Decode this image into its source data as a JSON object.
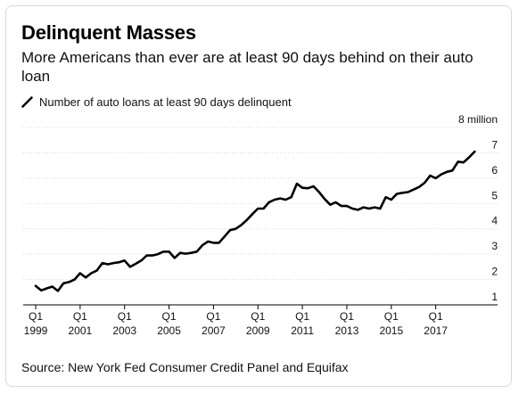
{
  "header": {
    "title": "Delinquent Masses",
    "subtitle": "More Americans than ever are at least 90 days behind on their auto loan"
  },
  "legend": {
    "label": "Number of auto loans at least 90 days delinquent",
    "icon": "diagonal-line-icon"
  },
  "footer": {
    "source": "Source: New York Fed Consumer Credit Panel and Equifax"
  },
  "colors": {
    "line": "#000000",
    "grid": "#d9d9d9",
    "text": "#111111"
  },
  "chart_data": {
    "type": "line",
    "title": "Delinquent Masses",
    "subtitle": "More Americans than ever are at least 90 days behind on their auto loan",
    "xlabel": "",
    "ylabel": "",
    "ylim": [
      1,
      8
    ],
    "y_ticks": [
      1,
      2,
      3,
      4,
      5,
      6,
      7,
      8
    ],
    "y_tick_labels": [
      "1",
      "2",
      "3",
      "4",
      "5",
      "6",
      "7",
      "8 million"
    ],
    "y_axis_side": "right",
    "grid": true,
    "x_ticks": [
      {
        "t": 1999,
        "q": "Q1",
        "year": "1999"
      },
      {
        "t": 2001,
        "q": "Q1",
        "year": "2001"
      },
      {
        "t": 2003,
        "q": "Q1",
        "year": "2003"
      },
      {
        "t": 2005,
        "q": "Q1",
        "year": "2005"
      },
      {
        "t": 2007,
        "q": "Q1",
        "year": "2007"
      },
      {
        "t": 2009,
        "q": "Q1",
        "year": "2009"
      },
      {
        "t": 2011,
        "q": "Q1",
        "year": "2011"
      },
      {
        "t": 2013,
        "q": "Q1",
        "year": "2013"
      },
      {
        "t": 2015,
        "q": "Q1",
        "year": "2015"
      },
      {
        "t": 2017,
        "q": "Q1",
        "year": "2017"
      }
    ],
    "xlim": [
      1999,
      2018.9
    ],
    "series": [
      {
        "name": "Number of auto loans at least 90 days delinquent",
        "x": [
          1999,
          1999.25,
          1999.5,
          1999.75,
          2000,
          2000.25,
          2000.5,
          2000.75,
          2001,
          2001.25,
          2001.5,
          2001.75,
          2002,
          2002.25,
          2002.5,
          2002.75,
          2003,
          2003.25,
          2003.5,
          2003.75,
          2004,
          2004.25,
          2004.5,
          2004.75,
          2005,
          2005.25,
          2005.5,
          2005.75,
          2006,
          2006.25,
          2006.5,
          2006.75,
          2007,
          2007.25,
          2007.5,
          2007.75,
          2008,
          2008.25,
          2008.5,
          2008.75,
          2009,
          2009.25,
          2009.5,
          2009.75,
          2010,
          2010.25,
          2010.5,
          2010.75,
          2011,
          2011.25,
          2011.5,
          2011.75,
          2012,
          2012.25,
          2012.5,
          2012.75,
          2013,
          2013.25,
          2013.5,
          2013.75,
          2014,
          2014.25,
          2014.5,
          2014.75,
          2015,
          2015.25,
          2015.5,
          2015.75,
          2016,
          2016.25,
          2016.5,
          2016.75,
          2017,
          2017.25,
          2017.5,
          2017.75,
          2018,
          2018.25,
          2018.5,
          2018.75
        ],
        "values": [
          1.75,
          1.57,
          1.65,
          1.72,
          1.55,
          1.85,
          1.9,
          2.0,
          2.25,
          2.08,
          2.25,
          2.35,
          2.65,
          2.6,
          2.65,
          2.68,
          2.75,
          2.5,
          2.62,
          2.75,
          2.95,
          2.95,
          3.0,
          3.1,
          3.1,
          2.85,
          3.05,
          3.02,
          3.05,
          3.1,
          3.35,
          3.5,
          3.45,
          3.45,
          3.7,
          3.95,
          4.0,
          4.15,
          4.35,
          4.58,
          4.8,
          4.8,
          5.05,
          5.15,
          5.2,
          5.15,
          5.25,
          5.78,
          5.62,
          5.6,
          5.68,
          5.45,
          5.18,
          4.95,
          5.05,
          4.9,
          4.9,
          4.8,
          4.75,
          4.85,
          4.8,
          4.85,
          4.8,
          5.25,
          5.15,
          5.38,
          5.42,
          5.45,
          5.55,
          5.65,
          5.82,
          6.1,
          6.0,
          6.15,
          6.25,
          6.3,
          6.65,
          6.62,
          6.82,
          7.05
        ]
      }
    ]
  }
}
